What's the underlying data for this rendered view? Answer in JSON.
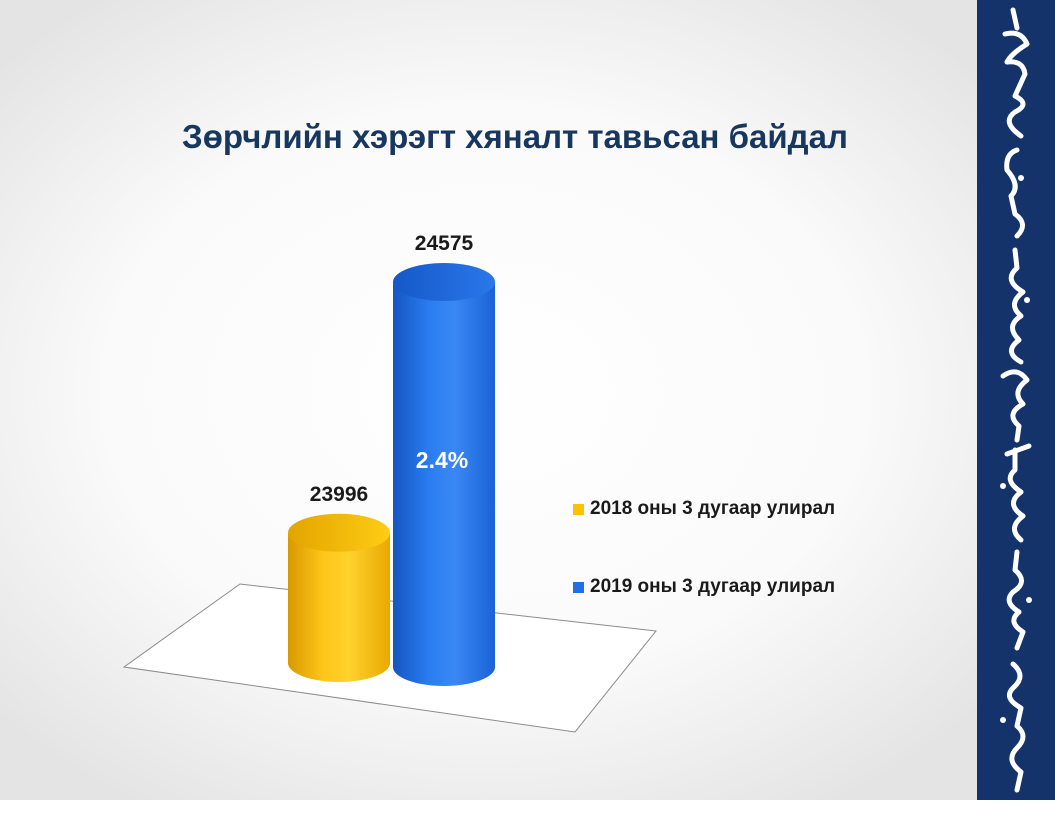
{
  "slide": {
    "title": "Зөрчлийн хэрэгт хяналт тавьсан байдал",
    "side_panel": {
      "script": "Mongolian script",
      "background_color": "#15336b",
      "text_color": "#ffffff"
    }
  },
  "chart_data": {
    "type": "bar",
    "style": "3d-cylinder",
    "title": "Зөрчлийн хэрэгт хяналт тавьсан байдал",
    "series": [
      {
        "name": "2018 оны 3 дугаар улирал",
        "value": 23996,
        "label": "23996",
        "color": "#ffc000"
      },
      {
        "name": "2019 оны 3 дугаар улирал",
        "value": 24575,
        "label": "24575",
        "color": "#1f6fe5"
      }
    ],
    "annotations": [
      {
        "text": "2.4%",
        "series": "2019 оны 3 дугаар улирал"
      }
    ],
    "legend_position": "right",
    "grid": false,
    "axes_visible": false,
    "floor_visible": true,
    "baseline": 23700
  }
}
